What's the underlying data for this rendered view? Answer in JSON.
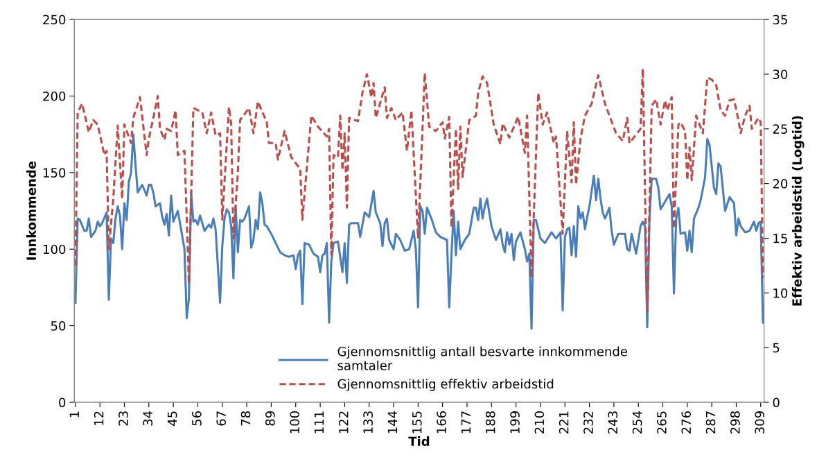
{
  "chart_data": {
    "type": "line",
    "xlabel": "Tid",
    "ylabel": "Innkommende",
    "y2label": "Effektiv arbeidstid (Logtid)",
    "xlim": [
      0.5,
      310.5
    ],
    "xticks": [
      1,
      12,
      23,
      34,
      45,
      56,
      67,
      78,
      89,
      100,
      111,
      122,
      133,
      144,
      155,
      166,
      177,
      188,
      199,
      210,
      221,
      232,
      243,
      254,
      265,
      276,
      287,
      298,
      309
    ],
    "ylim": [
      0,
      250
    ],
    "yticks": [
      0,
      50,
      100,
      150,
      200,
      250
    ],
    "y2lim": [
      0,
      35
    ],
    "y2ticks": [
      0,
      5,
      10,
      15,
      20,
      25,
      30,
      35
    ],
    "grid": false,
    "legend": "bottom",
    "marker": "none",
    "series": [
      {
        "name": "Gjennomsnittlig antall besvarte innkommende\nsamtaler",
        "color": "#4a7ebb",
        "line_style": "solid",
        "x": [
          1,
          2,
          3,
          5,
          6,
          7,
          8,
          10,
          11,
          12,
          13,
          15,
          16,
          17,
          18,
          19,
          20,
          21,
          22,
          23,
          24,
          25,
          26,
          27,
          28,
          29,
          31,
          33,
          34,
          35,
          36,
          37,
          39,
          40,
          41,
          42,
          43,
          44,
          45,
          47,
          48,
          50,
          51,
          52,
          53,
          54,
          55,
          56,
          57,
          59,
          61,
          62,
          63,
          64,
          66,
          67,
          68,
          69,
          70,
          71,
          72,
          73,
          74,
          75,
          76,
          77,
          79,
          80,
          81,
          82,
          83,
          84,
          85,
          86,
          87,
          89,
          91,
          93,
          95,
          97,
          99,
          100,
          101,
          102,
          103,
          104,
          106,
          108,
          110,
          111,
          112,
          113,
          114,
          115,
          116,
          117,
          119,
          121,
          122,
          123,
          124,
          125,
          128,
          129,
          131,
          133,
          135,
          136,
          138,
          139,
          140,
          141,
          142,
          144,
          145,
          147,
          149,
          151,
          153,
          154,
          155,
          156,
          157,
          158,
          159,
          161,
          163,
          165,
          168,
          169,
          170,
          171,
          172,
          173,
          174,
          176,
          178,
          180,
          181,
          182,
          183,
          184,
          185,
          186,
          188,
          190,
          192,
          193,
          194,
          195,
          196,
          197,
          198,
          199,
          201,
          203,
          204,
          205,
          206,
          207,
          208,
          210,
          212,
          215,
          217,
          219,
          220,
          221,
          222,
          223,
          224,
          225,
          226,
          227,
          228,
          229,
          230,
          231,
          232,
          234,
          235,
          236,
          237,
          238,
          239,
          241,
          242,
          243,
          245,
          248,
          249,
          250,
          251,
          253,
          255,
          256,
          257,
          258,
          259,
          260,
          262,
          263,
          264,
          266,
          268,
          269,
          270,
          271,
          272,
          273,
          275,
          276,
          277,
          278,
          279,
          281,
          282,
          284,
          285,
          286,
          288,
          289,
          290,
          291,
          292,
          293,
          295,
          297,
          298,
          299,
          300,
          302,
          304,
          306,
          307,
          308,
          309,
          310
        ],
        "values": [
          65,
          120,
          119,
          112,
          112,
          120,
          108,
          112,
          118,
          115,
          117,
          124,
          67,
          107,
          104,
          120,
          128,
          122,
          100,
          130,
          119,
          144,
          150,
          175,
          155,
          137,
          142,
          135,
          142,
          142,
          137,
          128,
          130,
          121,
          116,
          123,
          109,
          135,
          118,
          125,
          117,
          100,
          55,
          68,
          137,
          118,
          119,
          116,
          122,
          112,
          116,
          114,
          120,
          113,
          65,
          102,
          120,
          126,
          124,
          115,
          81,
          128,
          98,
          119,
          118,
          120,
          128,
          101,
          106,
          119,
          113,
          137,
          130,
          116,
          115,
          110,
          104,
          98,
          96,
          95,
          96,
          87,
          96,
          99,
          64,
          104,
          103,
          97,
          95,
          85,
          96,
          97,
          104,
          52,
          92,
          104,
          105,
          85,
          104,
          78,
          116,
          117,
          117,
          108,
          124,
          121,
          138,
          124,
          117,
          102,
          117,
          120,
          106,
          100,
          110,
          106,
          99,
          100,
          112,
          100,
          62,
          128,
          125,
          110,
          127,
          120,
          111,
          108,
          106,
          62,
          96,
          125,
          96,
          118,
          100,
          106,
          110,
          127,
          127,
          119,
          133,
          120,
          128,
          133,
          115,
          106,
          113,
          103,
          98,
          111,
          103,
          110,
          93,
          105,
          111,
          100,
          92,
          97,
          48,
          119,
          119,
          107,
          104,
          111,
          107,
          111,
          60,
          108,
          113,
          114,
          96,
          115,
          95,
          128,
          120,
          124,
          113,
          121,
          128,
          148,
          132,
          146,
          133,
          124,
          120,
          127,
          112,
          103,
          110,
          110,
          100,
          99,
          110,
          97,
          115,
          118,
          115,
          49,
          120,
          146,
          146,
          140,
          126,
          131,
          136,
          128,
          71,
          120,
          127,
          110,
          111,
          99,
          112,
          98,
          120,
          127,
          132,
          147,
          172,
          168,
          140,
          136,
          156,
          154,
          139,
          125,
          134,
          130,
          109,
          120,
          115,
          111,
          112,
          118,
          112,
          117,
          118,
          52
        ]
      },
      {
        "name": "Gjennomsnittlig effektiv arbeidstid",
        "color": "#be4b48",
        "line_style": "dashed",
        "axis": "y2",
        "x": [
          1,
          2,
          4,
          7,
          9,
          11,
          14,
          15,
          16,
          18,
          20,
          22,
          23,
          26,
          27,
          30,
          33,
          34,
          36,
          38,
          39,
          41,
          42,
          44,
          46,
          47,
          50,
          52,
          54,
          58,
          60,
          62,
          64,
          66,
          67,
          70,
          71,
          72,
          74,
          75,
          79,
          81,
          83,
          87,
          88,
          91,
          92,
          95,
          98,
          101,
          102,
          103,
          107,
          110,
          114,
          115,
          116,
          117,
          119,
          120,
          121,
          122,
          123,
          124,
          128,
          130,
          132,
          134,
          135,
          136,
          140,
          141,
          143,
          145,
          148,
          150,
          152,
          155,
          158,
          160,
          163,
          166,
          167,
          169,
          170,
          172,
          173,
          174,
          175,
          178,
          181,
          182,
          184,
          186,
          189,
          192,
          193,
          196,
          200,
          203,
          204,
          206,
          209,
          211,
          213,
          216,
          217,
          220,
          222,
          224,
          225,
          226,
          228,
          230,
          233,
          236,
          239,
          241,
          244,
          247,
          249,
          250,
          255,
          256,
          258,
          260,
          262,
          264,
          266,
          267,
          269,
          270,
          272,
          273,
          275,
          276,
          277,
          278,
          280,
          283,
          285,
          287,
          289,
          291,
          293,
          295,
          297,
          299,
          300,
          302,
          304,
          305,
          308,
          309,
          310
        ],
        "values": [
          12.5,
          26.5,
          27.3,
          24.7,
          25.8,
          25.4,
          22.6,
          23,
          14,
          18.6,
          25.3,
          18.6,
          25.4,
          23.7,
          26,
          27.9,
          22.6,
          24.1,
          26,
          28,
          25,
          24,
          25,
          24.8,
          26.7,
          22.6,
          23,
          10.8,
          26.9,
          26.5,
          24.6,
          26.5,
          24.4,
          24.6,
          16.7,
          27,
          25.4,
          15,
          21,
          25.8,
          26.9,
          24.6,
          27.5,
          25.6,
          23.7,
          23.7,
          22.2,
          24.8,
          22.4,
          21.6,
          21.4,
          16.7,
          26.2,
          25.2,
          24.3,
          25,
          13.5,
          22.6,
          22.4,
          26.2,
          21.2,
          24.6,
          17.8,
          26,
          25.7,
          28.3,
          30,
          27.9,
          29.2,
          26,
          28.8,
          26,
          26.9,
          25.8,
          26.5,
          23,
          26.7,
          15,
          30.1,
          25.2,
          24.8,
          25.6,
          24.1,
          26.1,
          16,
          25,
          19.5,
          25.2,
          20.6,
          25.8,
          26.2,
          28.3,
          29.8,
          29.2,
          25.4,
          23.6,
          25.5,
          24.2,
          26.1,
          22.8,
          26.2,
          11.4,
          28.3,
          25.4,
          26.5,
          23.7,
          24.3,
          15.4,
          24.8,
          20.1,
          25.6,
          19.9,
          24.1,
          26.2,
          27.3,
          29.9,
          27.3,
          26.2,
          24.6,
          23.9,
          26,
          23.7,
          25,
          30.5,
          8.2,
          27.1,
          27.7,
          25.4,
          27.6,
          26.7,
          27.9,
          15.9,
          25.4,
          25.6,
          24.8,
          20.3,
          23.3,
          20.3,
          26.2,
          24.6,
          29.7,
          29.5,
          29,
          26.7,
          26.2,
          27.6,
          27.7,
          25.8,
          24.6,
          26.2,
          27.1,
          25,
          26,
          25.6,
          11.4
        ]
      }
    ]
  }
}
